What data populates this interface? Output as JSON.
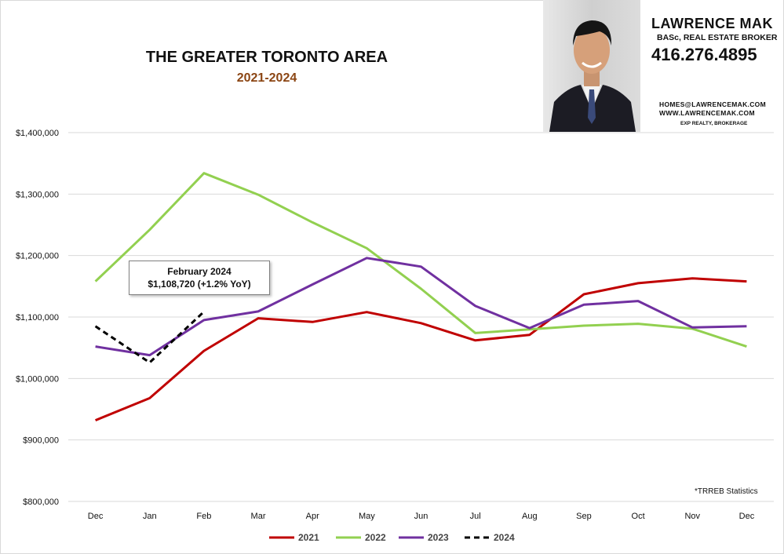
{
  "header": {
    "title": "THE GREATER TORONTO AREA",
    "subtitle": "2021-2024"
  },
  "agent": {
    "name": "LAWRENCE MAK",
    "role": "BASc, REAL ESTATE BROKER",
    "phone": "416.276.4895",
    "email": "HOMES@LAWRENCEMAK.COM",
    "website": "WWW.LAWRENCEMAK.COM",
    "brokerage": "EXP REALTY, BROKERAGE"
  },
  "callout": {
    "line1": "February 2024",
    "line2": "$1,108,720 (+1.2%  YoY)"
  },
  "source_note": "*TRREB Statistics",
  "chart_data": {
    "type": "line",
    "title": "THE GREATER TORONTO AREA",
    "subtitle": "2021-2024",
    "categories": [
      "Dec",
      "Jan",
      "Feb",
      "Mar",
      "Apr",
      "May",
      "Jun",
      "Jul",
      "Aug",
      "Sep",
      "Oct",
      "Nov",
      "Dec"
    ],
    "ylim": [
      800000,
      1400000
    ],
    "yticks": [
      800000,
      900000,
      1000000,
      1100000,
      1200000,
      1300000,
      1400000
    ],
    "ytick_labels": [
      "$800,000",
      "$900,000",
      "$1,000,000",
      "$1,100,000",
      "$1,200,000",
      "$1,300,000",
      "$1,400,000"
    ],
    "grid": true,
    "legend_position": "bottom",
    "series": [
      {
        "name": "2021",
        "color": "#c00000",
        "dash": "solid",
        "values": [
          932000,
          968000,
          1045000,
          1098000,
          1092000,
          1108000,
          1090000,
          1062000,
          1071000,
          1137000,
          1155000,
          1163000,
          1158000
        ]
      },
      {
        "name": "2022",
        "color": "#92d050",
        "dash": "solid",
        "values": [
          1158000,
          1242000,
          1334000,
          1299000,
          1254000,
          1212000,
          1146000,
          1074000,
          1080000,
          1086000,
          1089000,
          1081000,
          1052000
        ]
      },
      {
        "name": "2023",
        "color": "#7030a0",
        "dash": "solid",
        "values": [
          1052000,
          1038000,
          1095000,
          1109000,
          1153000,
          1196000,
          1182000,
          1118000,
          1082000,
          1120000,
          1126000,
          1083000,
          1085000
        ]
      },
      {
        "name": "2024",
        "color": "#000000",
        "dash": "dashed",
        "values": [
          1085000,
          1026000,
          1108720,
          null,
          null,
          null,
          null,
          null,
          null,
          null,
          null,
          null,
          null
        ]
      }
    ]
  }
}
